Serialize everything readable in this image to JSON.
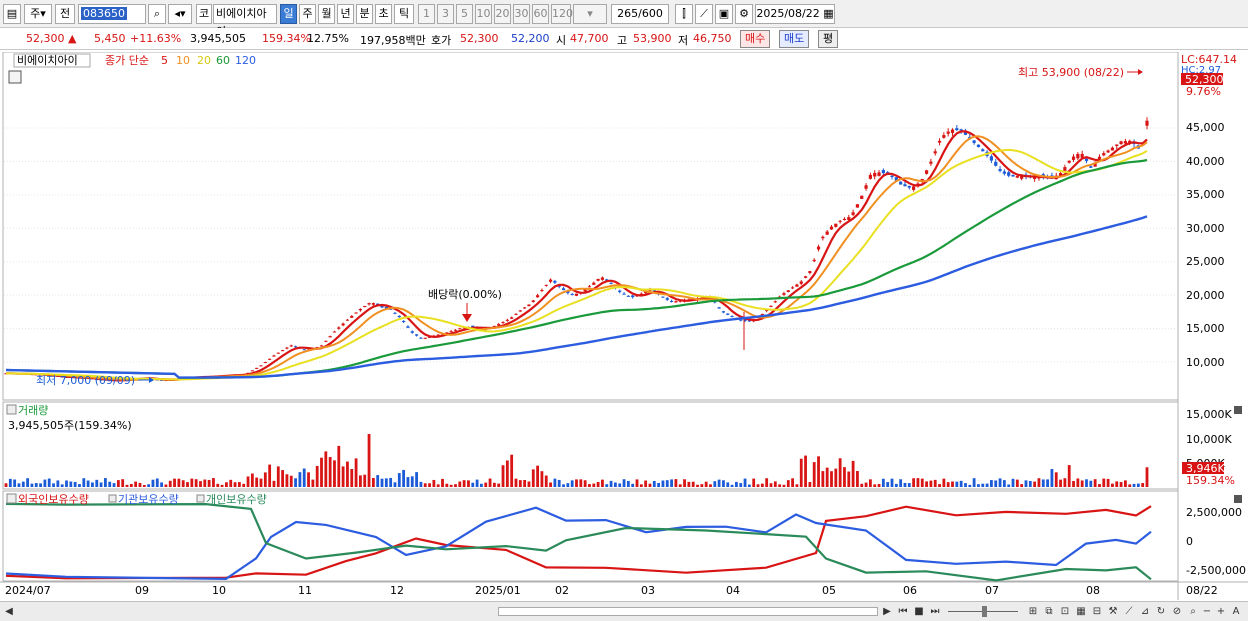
{
  "toolbar": {
    "market": "주",
    "prev": "전",
    "code": "083650",
    "name": "비에이치아이",
    "ko": "코",
    "periods": [
      "일",
      "주",
      "월",
      "년",
      "분",
      "초",
      "틱"
    ],
    "selected_period": "일",
    "intervals": [
      "1",
      "3",
      "5",
      "10",
      "20",
      "30",
      "60",
      "120"
    ],
    "count": "265",
    "total": "/600",
    "date": "2025/08/22"
  },
  "quote": {
    "price": "52,300",
    "arrow": "▲",
    "change": "5,450",
    "change_pct": "+11.63%",
    "volume": "3,945,505",
    "vol_ratio": "159.34%",
    "turnover": "12.75%",
    "amount": "197,958백만",
    "hoga_label": "호가",
    "ask": "52,300",
    "bid": "52,200",
    "open_label": "시",
    "open": "47,700",
    "high_label": "고",
    "high": "53,900",
    "low_label": "저",
    "low": "46,750",
    "buy": "매수",
    "sell": "매도",
    "avg": "평"
  },
  "price_panel": {
    "title": "비에이치아이",
    "ma_label": "종가 단순",
    "ma_periods": [
      "5",
      "10",
      "20",
      "60",
      "120"
    ],
    "lc": "LC:647.14",
    "hc": "HC:2.97",
    "current_tag": "52,300",
    "current_pct": "9.76%",
    "high_note": "최고 53,900 (08/22)",
    "low_note": "최저 7,000 (09/09)",
    "div_note": "배당락(0.00%)",
    "y_ticks": [
      "45,000",
      "40,000",
      "35,000",
      "30,000",
      "25,000",
      "20,000",
      "15,000",
      "10,000"
    ]
  },
  "volume_panel": {
    "title": "거래량",
    "value": "3,945,505주(159.34%)",
    "y_ticks": [
      "15,000K",
      "10,000K",
      "5,000K"
    ],
    "current_tag": "3,946K",
    "current_pct": "159.34%"
  },
  "holdings_panel": {
    "series": [
      "외국인보유수량",
      "기관보유수량",
      "개인보유수량"
    ],
    "y_ticks": [
      "2,500,000",
      "0",
      "-2,500,000"
    ]
  },
  "x_axis": {
    "labels": [
      "2024/07",
      "09",
      "10",
      "11",
      "12",
      "2025/01",
      "02",
      "03",
      "04",
      "05",
      "06",
      "07",
      "08"
    ],
    "last_date": "08/22"
  },
  "colors": {
    "up": "#d81414",
    "down": "#1c5bd8",
    "ma5": "#d81414",
    "ma10": "#f09020",
    "ma20": "#e8e020",
    "ma60": "#1a9a3a",
    "ma120": "#2c5ce0",
    "foreign": "#d81414",
    "institution": "#2c5ce0",
    "individual": "#2a8a5a"
  },
  "chart_data": {
    "type": "candlestick",
    "x_range": [
      "2024/07",
      "2025/08/22"
    ],
    "price_ylim": [
      7000,
      53900
    ],
    "price_path": [
      [
        0,
        8300
      ],
      [
        20,
        8200
      ],
      [
        40,
        8000
      ],
      [
        60,
        7700
      ],
      [
        80,
        7600
      ],
      [
        95,
        7300
      ],
      [
        110,
        7200
      ],
      [
        125,
        7500
      ],
      [
        140,
        7600
      ],
      [
        155,
        7200
      ],
      [
        165,
        7400
      ],
      [
        180,
        7700
      ],
      [
        200,
        7800
      ],
      [
        220,
        8000
      ],
      [
        240,
        8200
      ],
      [
        255,
        9500
      ],
      [
        270,
        11200
      ],
      [
        285,
        12500
      ],
      [
        300,
        11700
      ],
      [
        315,
        12400
      ],
      [
        330,
        14800
      ],
      [
        345,
        16800
      ],
      [
        355,
        18000
      ],
      [
        365,
        19000
      ],
      [
        375,
        18200
      ],
      [
        385,
        17800
      ],
      [
        395,
        16500
      ],
      [
        405,
        14500
      ],
      [
        415,
        13500
      ],
      [
        425,
        13800
      ],
      [
        435,
        14200
      ],
      [
        445,
        14600
      ],
      [
        455,
        15100
      ],
      [
        465,
        15300
      ],
      [
        475,
        14900
      ],
      [
        485,
        15200
      ],
      [
        495,
        15800
      ],
      [
        505,
        16600
      ],
      [
        515,
        17800
      ],
      [
        525,
        18800
      ],
      [
        535,
        20600
      ],
      [
        545,
        22400
      ],
      [
        555,
        21000
      ],
      [
        565,
        20000
      ],
      [
        575,
        20400
      ],
      [
        585,
        21500
      ],
      [
        595,
        22800
      ],
      [
        605,
        21700
      ],
      [
        615,
        20300
      ],
      [
        625,
        19600
      ],
      [
        635,
        20200
      ],
      [
        645,
        21000
      ],
      [
        655,
        19800
      ],
      [
        665,
        19000
      ],
      [
        675,
        19200
      ],
      [
        685,
        19400
      ],
      [
        695,
        19600
      ],
      [
        705,
        19700
      ],
      [
        715,
        17600
      ],
      [
        725,
        16800
      ],
      [
        735,
        16200
      ],
      [
        745,
        16100
      ],
      [
        755,
        17000
      ],
      [
        765,
        18400
      ],
      [
        775,
        20000
      ],
      [
        785,
        21000
      ],
      [
        795,
        22000
      ],
      [
        805,
        23800
      ],
      [
        815,
        28400
      ],
      [
        825,
        30200
      ],
      [
        835,
        31200
      ],
      [
        845,
        31800
      ],
      [
        855,
        34600
      ],
      [
        865,
        38200
      ],
      [
        875,
        38400
      ],
      [
        885,
        37800
      ],
      [
        895,
        36500
      ],
      [
        905,
        36000
      ],
      [
        915,
        37000
      ],
      [
        925,
        40000
      ],
      [
        935,
        43600
      ],
      [
        945,
        44800
      ],
      [
        955,
        44600
      ],
      [
        965,
        43200
      ],
      [
        975,
        41800
      ],
      [
        985,
        40200
      ],
      [
        995,
        38400
      ],
      [
        1005,
        37700
      ],
      [
        1015,
        37900
      ],
      [
        1025,
        37600
      ],
      [
        1035,
        37700
      ],
      [
        1045,
        37400
      ],
      [
        1055,
        38300
      ],
      [
        1065,
        40500
      ],
      [
        1075,
        41400
      ],
      [
        1085,
        39000
      ],
      [
        1095,
        41000
      ],
      [
        1105,
        41900
      ],
      [
        1115,
        43000
      ],
      [
        1125,
        43100
      ],
      [
        1135,
        41500
      ],
      [
        1142,
        46850
      ],
      [
        1145,
        52300
      ]
    ],
    "volume_ylim": [
      0,
      15000
    ],
    "holdings_ylim": [
      -4000000,
      4000000
    ],
    "series": [
      {
        "name": "외국인보유수량",
        "type": "line"
      },
      {
        "name": "기관보유수량",
        "type": "line"
      },
      {
        "name": "개인보유수량",
        "type": "line"
      }
    ]
  }
}
